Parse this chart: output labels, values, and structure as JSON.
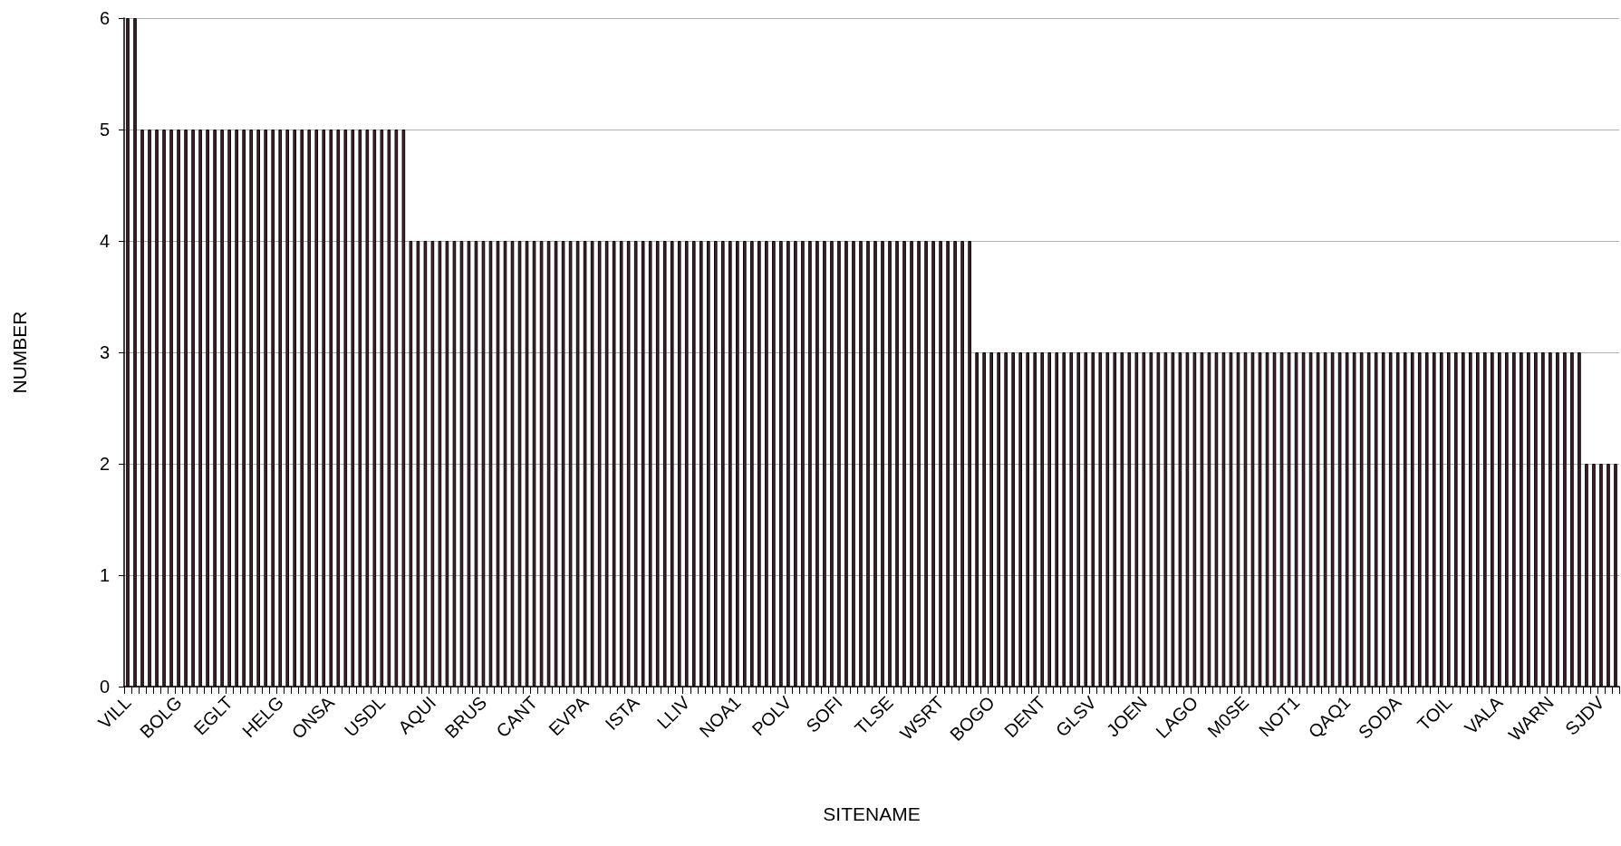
{
  "chart_data": {
    "type": "bar",
    "xlabel": "SITENAME",
    "ylabel": "NUMBER",
    "color": "#4a2233",
    "ylim": [
      0,
      6
    ],
    "yticks": [
      0,
      1,
      2,
      3,
      4,
      5,
      6
    ],
    "grid": "y",
    "categories": [
      "VILL",
      null,
      null,
      null,
      null,
      null,
      null,
      "BOLG",
      null,
      null,
      null,
      null,
      null,
      null,
      "EGLT",
      null,
      null,
      null,
      null,
      null,
      null,
      "HELG",
      null,
      null,
      null,
      null,
      null,
      null,
      "ONSA",
      null,
      null,
      null,
      null,
      null,
      null,
      "USDL",
      null,
      null,
      null,
      null,
      null,
      null,
      "AQUI",
      null,
      null,
      null,
      null,
      null,
      null,
      "BRUS",
      null,
      null,
      null,
      null,
      null,
      null,
      "CANT",
      null,
      null,
      null,
      null,
      null,
      null,
      "EVPA",
      null,
      null,
      null,
      null,
      null,
      null,
      "ISTA",
      null,
      null,
      null,
      null,
      null,
      null,
      "LLIV",
      null,
      null,
      null,
      null,
      null,
      null,
      "NOA1",
      null,
      null,
      null,
      null,
      null,
      null,
      "POLV",
      null,
      null,
      null,
      null,
      null,
      null,
      "SOFI",
      null,
      null,
      null,
      null,
      null,
      null,
      "TLSE",
      null,
      null,
      null,
      null,
      null,
      null,
      "WSRT",
      null,
      null,
      null,
      null,
      null,
      null,
      "BOGO",
      null,
      null,
      null,
      null,
      null,
      null,
      "DENT",
      null,
      null,
      null,
      null,
      null,
      null,
      "GLSV",
      null,
      null,
      null,
      null,
      null,
      null,
      "JOEN",
      null,
      null,
      null,
      null,
      null,
      null,
      "LAGO",
      null,
      null,
      null,
      null,
      null,
      null,
      "M0SE",
      null,
      null,
      null,
      null,
      null,
      null,
      "NOT1",
      null,
      null,
      null,
      null,
      null,
      null,
      "QAQ1",
      null,
      null,
      null,
      null,
      null,
      null,
      "SODA",
      null,
      null,
      null,
      null,
      null,
      null,
      "TOIL",
      null,
      null,
      null,
      null,
      null,
      null,
      "VALA",
      null,
      null,
      null,
      null,
      null,
      null,
      "WARN",
      null,
      null,
      null,
      null,
      null,
      null,
      "SJDV",
      null,
      null
    ],
    "values": [
      6,
      6,
      5,
      5,
      5,
      5,
      5,
      5,
      5,
      5,
      5,
      5,
      5,
      5,
      5,
      5,
      5,
      5,
      5,
      5,
      5,
      5,
      5,
      5,
      5,
      5,
      5,
      5,
      5,
      5,
      5,
      5,
      5,
      5,
      5,
      5,
      5,
      5,
      5,
      4,
      4,
      4,
      4,
      4,
      4,
      4,
      4,
      4,
      4,
      4,
      4,
      4,
      4,
      4,
      4,
      4,
      4,
      4,
      4,
      4,
      4,
      4,
      4,
      4,
      4,
      4,
      4,
      4,
      4,
      4,
      4,
      4,
      4,
      4,
      4,
      4,
      4,
      4,
      4,
      4,
      4,
      4,
      4,
      4,
      4,
      4,
      4,
      4,
      4,
      4,
      4,
      4,
      4,
      4,
      4,
      4,
      4,
      4,
      4,
      4,
      4,
      4,
      4,
      4,
      4,
      4,
      4,
      4,
      4,
      4,
      4,
      4,
      4,
      4,
      4,
      4,
      4,
      3,
      3,
      3,
      3,
      3,
      3,
      3,
      3,
      3,
      3,
      3,
      3,
      3,
      3,
      3,
      3,
      3,
      3,
      3,
      3,
      3,
      3,
      3,
      3,
      3,
      3,
      3,
      3,
      3,
      3,
      3,
      3,
      3,
      3,
      3,
      3,
      3,
      3,
      3,
      3,
      3,
      3,
      3,
      3,
      3,
      3,
      3,
      3,
      3,
      3,
      3,
      3,
      3,
      3,
      3,
      3,
      3,
      3,
      3,
      3,
      3,
      3,
      3,
      3,
      3,
      3,
      3,
      3,
      3,
      3,
      3,
      3,
      3,
      3,
      3,
      3,
      3,
      3,
      3,
      3,
      3,
      3,
      3,
      3,
      2,
      2,
      2,
      2,
      2
    ]
  }
}
